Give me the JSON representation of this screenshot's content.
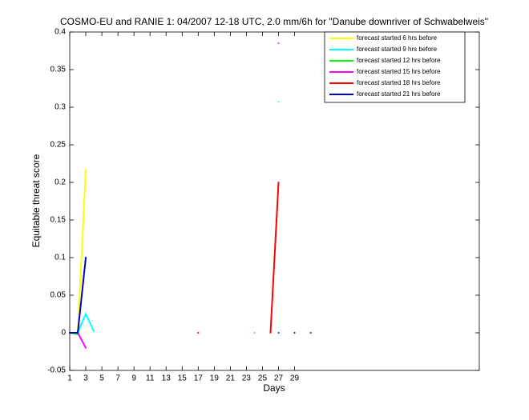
{
  "chart_data": {
    "type": "line",
    "title": "COSMO-EU and RANIE 1: 04/2007 12-18 UTC, 2.0 mm/6h for \"Danube downriver of Schwabelweis\"",
    "x_label": "Days",
    "y_label": "Equitable threat score",
    "x": [
      1,
      2,
      3,
      4,
      5,
      6,
      7,
      8,
      9,
      10,
      11,
      12,
      13,
      14,
      15,
      16,
      17,
      18,
      19,
      20,
      21,
      22,
      23,
      24,
      25,
      26,
      27,
      28,
      29,
      30,
      31
    ],
    "series": [
      {
        "name": "forecast started 6 hrs before",
        "color": "#ffff00",
        "values": [
          0,
          0,
          0.217,
          null,
          null,
          null,
          null,
          null,
          null,
          null,
          null,
          null,
          null,
          null,
          null,
          null,
          null,
          null,
          null,
          null,
          null,
          null,
          null,
          null,
          null,
          null,
          null,
          null,
          null,
          null,
          null
        ]
      },
      {
        "name": "forecast started 9 hrs before",
        "color": "#00ffff",
        "values": [
          0,
          0,
          0.025,
          0.002,
          null,
          null,
          null,
          null,
          null,
          null,
          null,
          null,
          null,
          null,
          null,
          null,
          null,
          null,
          null,
          null,
          null,
          null,
          null,
          null,
          null,
          null,
          0.307,
          null,
          null,
          null,
          null
        ]
      },
      {
        "name": "forecast started 12 hrs before",
        "color": "#00ff00",
        "values": [
          0,
          -0.002,
          null,
          null,
          null,
          null,
          null,
          null,
          null,
          null,
          null,
          null,
          null,
          null,
          null,
          null,
          null,
          null,
          null,
          null,
          null,
          null,
          null,
          0,
          null,
          null,
          null,
          null,
          null,
          null,
          null
        ]
      },
      {
        "name": "forecast started 15 hrs before",
        "color": "#ff00ff",
        "values": [
          0,
          0,
          -0.02,
          null,
          null,
          null,
          null,
          null,
          null,
          null,
          null,
          null,
          null,
          null,
          null,
          null,
          0,
          null,
          null,
          null,
          null,
          null,
          null,
          null,
          null,
          null,
          0.385,
          null,
          null,
          null,
          null
        ]
      },
      {
        "name": "forecast started 18 hrs before",
        "color": "#ff0000",
        "values": [
          null,
          null,
          null,
          null,
          null,
          null,
          null,
          null,
          null,
          null,
          null,
          null,
          null,
          null,
          null,
          null,
          0,
          null,
          null,
          null,
          null,
          null,
          null,
          null,
          null,
          0,
          0.2,
          null,
          null,
          null,
          null
        ]
      },
      {
        "name": "forecast started 21 hrs before",
        "color": "#0000cc",
        "values": [
          0,
          0,
          0.1,
          null,
          null,
          null,
          null,
          null,
          null,
          null,
          null,
          null,
          null,
          null,
          null,
          null,
          null,
          null,
          null,
          null,
          null,
          null,
          null,
          null,
          null,
          null,
          0,
          null,
          0,
          null,
          0
        ]
      }
    ],
    "xlim": [
      1,
      52
    ],
    "xticks": [
      1,
      3,
      5,
      7,
      9,
      11,
      13,
      15,
      17,
      19,
      21,
      23,
      25,
      27,
      29
    ],
    "ylim": [
      -0.05,
      0.4
    ],
    "yticks": [
      -0.05,
      0,
      0.05,
      0.1,
      0.15,
      0.2,
      0.25,
      0.3,
      0.35,
      0.4
    ],
    "legend": "top-right",
    "grid": false
  }
}
